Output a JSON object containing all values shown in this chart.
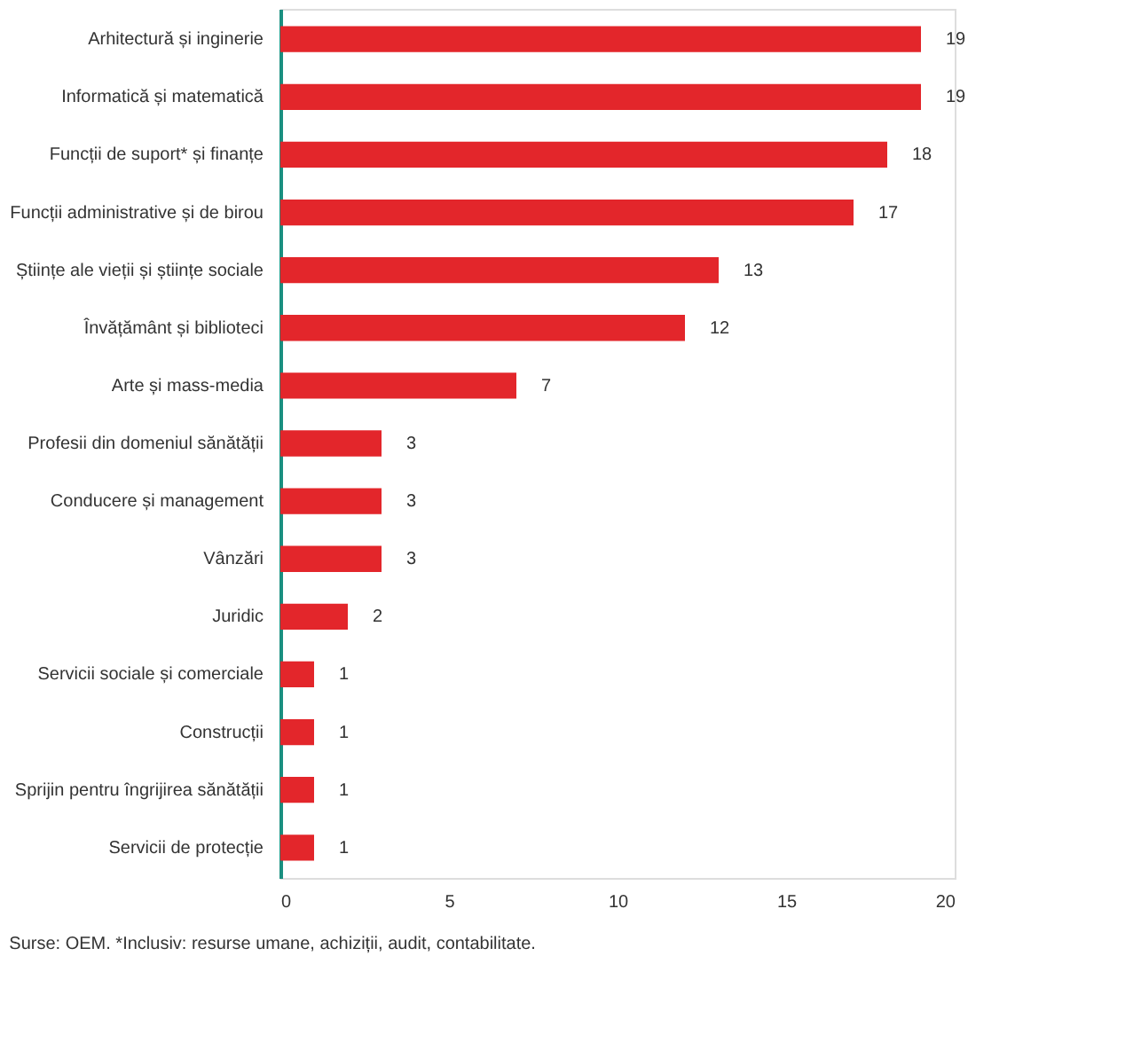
{
  "chart_data": {
    "type": "bar",
    "orientation": "horizontal",
    "categories": [
      "Arhitectură și inginerie",
      "Informatică și matematică",
      "Funcții de suport* și finanțe",
      "Funcții administrative și de birou",
      "Științe ale vieții și științe sociale",
      "Învățământ și biblioteci",
      "Arte și mass-media",
      "Profesii din domeniul sănătății",
      "Conducere și management",
      "Vânzări",
      "Juridic",
      "Servicii sociale și comerciale",
      "Construcții",
      "Sprijin pentru îngrijirea sănătății",
      "Servicii de protecție"
    ],
    "values": [
      19,
      19,
      18,
      17,
      13,
      12,
      7,
      3,
      3,
      3,
      2,
      1,
      1,
      1,
      1
    ],
    "color": "#e3262b",
    "xlim": [
      0,
      20
    ],
    "xticks": [
      0,
      5,
      10,
      15,
      20
    ],
    "grid": false,
    "data_labels": true,
    "annotations": [
      "Surse: OEM. *Inclusiv: resurse umane, achiziții, audit, contabilitate."
    ]
  }
}
